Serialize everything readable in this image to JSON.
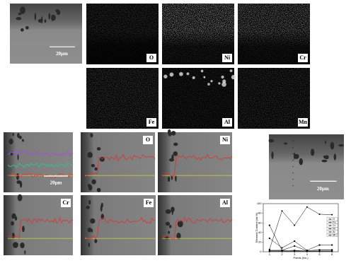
{
  "element_maps": {
    "scale_bar": "20μm",
    "labels": [
      "O",
      "Ni",
      "Cr",
      "Fe",
      "Al",
      "Mn"
    ]
  },
  "line_scans": {
    "scale_bar": "20μm",
    "labels": [
      "O",
      "Ni",
      "Cr",
      "Fe",
      "Al"
    ]
  },
  "point_image": {
    "scale_bar": "20μm"
  },
  "chart_data": {
    "type": "line",
    "x_label": "Points (No.)",
    "y_label": "Element Content (wt.%)",
    "x": [
      1,
      2,
      3,
      4,
      5,
      6
    ],
    "xlim": [
      0.5,
      6.5
    ],
    "xticks": [
      1,
      2,
      3,
      4,
      5,
      6
    ],
    "ylim": [
      0,
      100
    ],
    "yticks": [
      0,
      20,
      40,
      60,
      80,
      100
    ],
    "series": [
      {
        "name": "O",
        "color": "#000000",
        "values": [
          55,
          3,
          2,
          2,
          3,
          3
        ]
      },
      {
        "name": "Fe",
        "color": "#000000",
        "values": [
          5,
          85,
          55,
          93,
          78,
          77
        ]
      },
      {
        "name": "Cr",
        "color": "#000000",
        "values": [
          28,
          8,
          22,
          3,
          14,
          14
        ]
      },
      {
        "name": "Ni",
        "color": "#000000",
        "values": [
          3,
          3,
          12,
          2,
          4,
          4
        ]
      },
      {
        "name": "Al",
        "color": "#000000",
        "values": [
          2,
          2,
          3,
          1,
          1,
          1
        ]
      },
      {
        "name": "Mn",
        "color": "#000000",
        "values": [
          1,
          1,
          1,
          1,
          1,
          1
        ]
      }
    ],
    "legend": "right"
  }
}
